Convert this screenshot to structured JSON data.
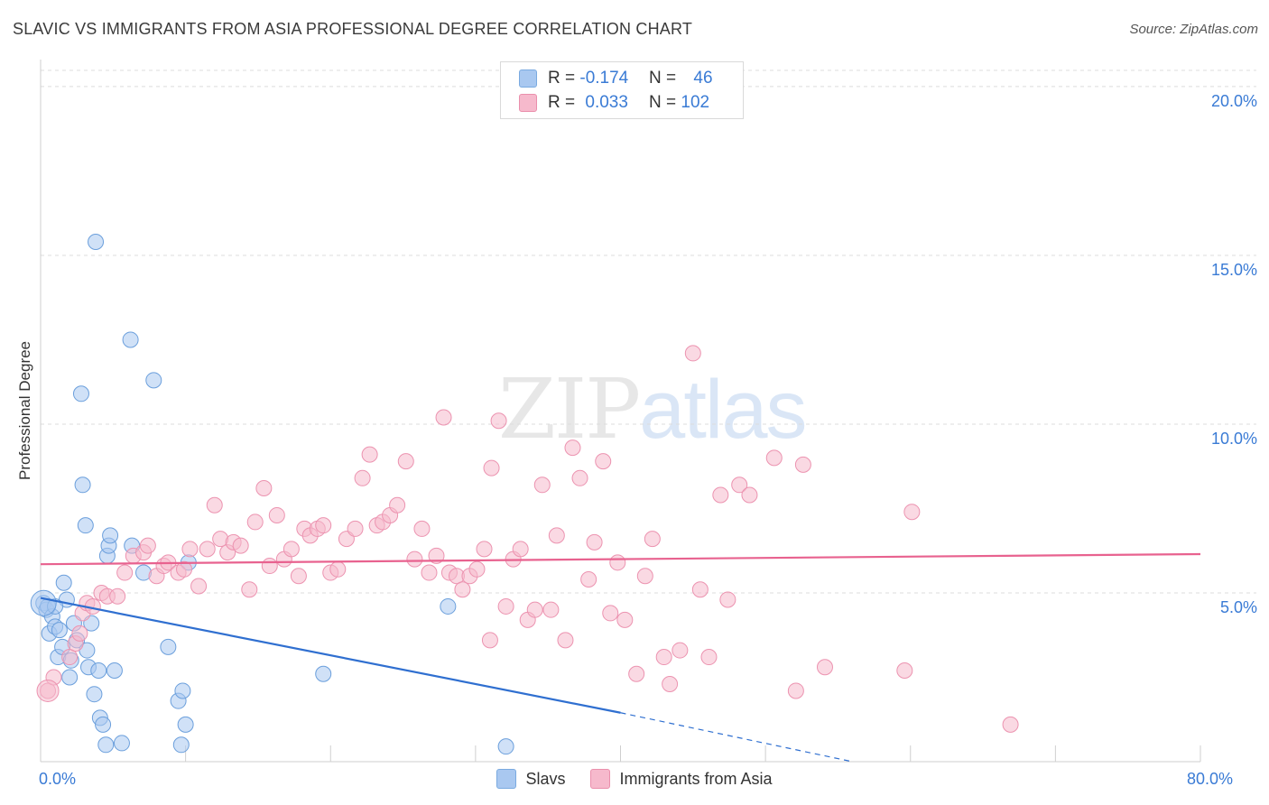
{
  "title": "SLAVIC VS IMMIGRANTS FROM ASIA PROFESSIONAL DEGREE CORRELATION CHART",
  "source": "Source: ZipAtlas.com",
  "watermark": {
    "zip": "ZIP",
    "atlas": "atlas"
  },
  "legend": {
    "rows": [
      {
        "r_label": "R = ",
        "r_value": "-0.174",
        "n_label": "N = ",
        "n_value": "46",
        "color": "#a9c8f0",
        "stroke": "#7aaae0"
      },
      {
        "r_label": "R = ",
        "r_value": "0.033",
        "n_label": "N = ",
        "n_value": "102",
        "color": "#f6b9cc",
        "stroke": "#ea8fac"
      }
    ]
  },
  "chart_data": {
    "type": "scatter",
    "title": "SLAVIC VS IMMIGRANTS FROM ASIA PROFESSIONAL DEGREE CORRELATION CHART",
    "xlabel": "",
    "ylabel": "Professional Degree",
    "xlim": [
      0,
      80
    ],
    "ylim": [
      0,
      20.8
    ],
    "x_tick_labels": [
      {
        "value": 0,
        "label": "0.0%"
      },
      {
        "value": 80,
        "label": "80.0%"
      }
    ],
    "y_tick_labels": [
      {
        "value": 5,
        "label": "5.0%"
      },
      {
        "value": 10,
        "label": "10.0%"
      },
      {
        "value": 15,
        "label": "15.0%"
      },
      {
        "value": 20,
        "label": "20.0%"
      }
    ],
    "series": [
      {
        "name": "Slavs",
        "color": "#a9c8f0",
        "stroke": "#6b9fdc",
        "line_color": "#2f6fd0",
        "trend": {
          "x0": 0,
          "y0": 4.85,
          "x1": 40,
          "y1": 1.45,
          "dash_to_x": 56,
          "dash_to_y": 0.0
        },
        "points": [
          [
            0.2,
            4.7
          ],
          [
            0.4,
            4.5
          ],
          [
            0.5,
            4.6
          ],
          [
            0.6,
            3.8
          ],
          [
            0.8,
            4.3
          ],
          [
            1,
            4.0
          ],
          [
            1.2,
            3.1
          ],
          [
            1.3,
            3.9
          ],
          [
            1.5,
            3.4
          ],
          [
            1.6,
            5.3
          ],
          [
            1.8,
            4.8
          ],
          [
            2,
            2.5
          ],
          [
            2.1,
            3.0
          ],
          [
            2.3,
            4.1
          ],
          [
            2.5,
            3.6
          ],
          [
            2.8,
            10.9
          ],
          [
            2.9,
            8.2
          ],
          [
            3.1,
            7.0
          ],
          [
            3.2,
            3.3
          ],
          [
            3.3,
            2.8
          ],
          [
            3.5,
            4.1
          ],
          [
            3.7,
            2.0
          ],
          [
            4.0,
            2.7
          ],
          [
            4.1,
            1.3
          ],
          [
            4.3,
            1.1
          ],
          [
            4.5,
            0.5
          ],
          [
            4.6,
            6.1
          ],
          [
            4.7,
            6.4
          ],
          [
            4.8,
            6.7
          ],
          [
            5.1,
            2.7
          ],
          [
            5.6,
            0.55
          ],
          [
            6.2,
            12.5
          ],
          [
            6.3,
            6.4
          ],
          [
            7.1,
            5.6
          ],
          [
            7.8,
            11.3
          ],
          [
            8.8,
            3.4
          ],
          [
            9.5,
            1.8
          ],
          [
            9.7,
            0.5
          ],
          [
            9.8,
            2.1
          ],
          [
            10.0,
            1.1
          ],
          [
            10.2,
            5.9
          ],
          [
            3.8,
            15.4
          ],
          [
            19.5,
            2.6
          ],
          [
            28.1,
            4.6
          ],
          [
            32.1,
            0.45
          ],
          [
            1.0,
            4.6
          ]
        ]
      },
      {
        "name": "Immigrants from Asia",
        "color": "#f6b9cc",
        "stroke": "#ec93b0",
        "line_color": "#e8628f",
        "trend": {
          "x0": 0,
          "y0": 5.85,
          "x1": 80,
          "y1": 6.15
        },
        "points": [
          [
            0.5,
            2.1
          ],
          [
            0.9,
            2.5
          ],
          [
            2.0,
            3.1
          ],
          [
            2.4,
            3.5
          ],
          [
            2.7,
            3.8
          ],
          [
            2.9,
            4.4
          ],
          [
            3.2,
            4.7
          ],
          [
            3.6,
            4.6
          ],
          [
            4.2,
            5.0
          ],
          [
            4.6,
            4.9
          ],
          [
            5.3,
            4.9
          ],
          [
            5.8,
            5.6
          ],
          [
            6.4,
            6.1
          ],
          [
            7.1,
            6.2
          ],
          [
            7.4,
            6.4
          ],
          [
            8.0,
            5.5
          ],
          [
            8.5,
            5.8
          ],
          [
            8.8,
            5.9
          ],
          [
            9.5,
            5.6
          ],
          [
            9.9,
            5.7
          ],
          [
            10.3,
            6.3
          ],
          [
            10.9,
            5.2
          ],
          [
            11.5,
            6.3
          ],
          [
            12.0,
            7.6
          ],
          [
            12.4,
            6.6
          ],
          [
            12.9,
            6.2
          ],
          [
            13.3,
            6.5
          ],
          [
            13.8,
            6.4
          ],
          [
            14.4,
            5.1
          ],
          [
            14.8,
            7.1
          ],
          [
            15.4,
            8.1
          ],
          [
            15.8,
            5.8
          ],
          [
            16.3,
            7.3
          ],
          [
            16.8,
            6.0
          ],
          [
            17.3,
            6.3
          ],
          [
            17.8,
            5.5
          ],
          [
            18.2,
            6.9
          ],
          [
            18.6,
            6.7
          ],
          [
            19.1,
            6.9
          ],
          [
            19.5,
            7.0
          ],
          [
            20.0,
            5.6
          ],
          [
            20.5,
            5.7
          ],
          [
            21.1,
            6.6
          ],
          [
            21.7,
            6.9
          ],
          [
            22.2,
            8.4
          ],
          [
            22.7,
            9.1
          ],
          [
            23.2,
            7.0
          ],
          [
            23.6,
            7.1
          ],
          [
            24.1,
            7.3
          ],
          [
            24.6,
            7.6
          ],
          [
            25.2,
            8.9
          ],
          [
            25.8,
            6.0
          ],
          [
            26.3,
            6.9
          ],
          [
            26.8,
            5.6
          ],
          [
            27.3,
            6.1
          ],
          [
            27.8,
            10.2
          ],
          [
            28.2,
            5.6
          ],
          [
            28.7,
            5.5
          ],
          [
            29.1,
            5.1
          ],
          [
            29.6,
            5.5
          ],
          [
            30.1,
            5.7
          ],
          [
            30.6,
            6.3
          ],
          [
            31.1,
            8.7
          ],
          [
            31.6,
            10.1
          ],
          [
            32.1,
            4.6
          ],
          [
            32.6,
            6.0
          ],
          [
            33.1,
            6.3
          ],
          [
            33.6,
            4.2
          ],
          [
            34.1,
            4.5
          ],
          [
            34.6,
            8.2
          ],
          [
            35.2,
            4.5
          ],
          [
            35.6,
            6.7
          ],
          [
            36.2,
            3.6
          ],
          [
            36.7,
            9.3
          ],
          [
            37.2,
            8.4
          ],
          [
            37.8,
            5.4
          ],
          [
            38.2,
            6.5
          ],
          [
            38.8,
            8.9
          ],
          [
            39.3,
            4.4
          ],
          [
            39.8,
            5.9
          ],
          [
            40.3,
            4.2
          ],
          [
            41.1,
            2.6
          ],
          [
            41.7,
            5.5
          ],
          [
            42.2,
            6.6
          ],
          [
            43.0,
            3.1
          ],
          [
            43.4,
            2.3
          ],
          [
            44.1,
            3.3
          ],
          [
            45.0,
            12.1
          ],
          [
            45.5,
            5.1
          ],
          [
            46.1,
            3.1
          ],
          [
            46.9,
            7.9
          ],
          [
            47.4,
            4.8
          ],
          [
            48.2,
            8.2
          ],
          [
            48.9,
            7.9
          ],
          [
            50.6,
            9.0
          ],
          [
            52.1,
            2.1
          ],
          [
            52.6,
            8.8
          ],
          [
            54.1,
            2.8
          ],
          [
            59.6,
            2.7
          ],
          [
            60.1,
            7.4
          ],
          [
            66.9,
            1.1
          ],
          [
            31.0,
            3.6
          ]
        ]
      }
    ]
  },
  "bottom_legend": [
    {
      "label": "Slavs",
      "color": "#a9c8f0",
      "stroke": "#7aaae0"
    },
    {
      "label": "Immigrants from Asia",
      "color": "#f6b9cc",
      "stroke": "#ea8fac"
    }
  ]
}
